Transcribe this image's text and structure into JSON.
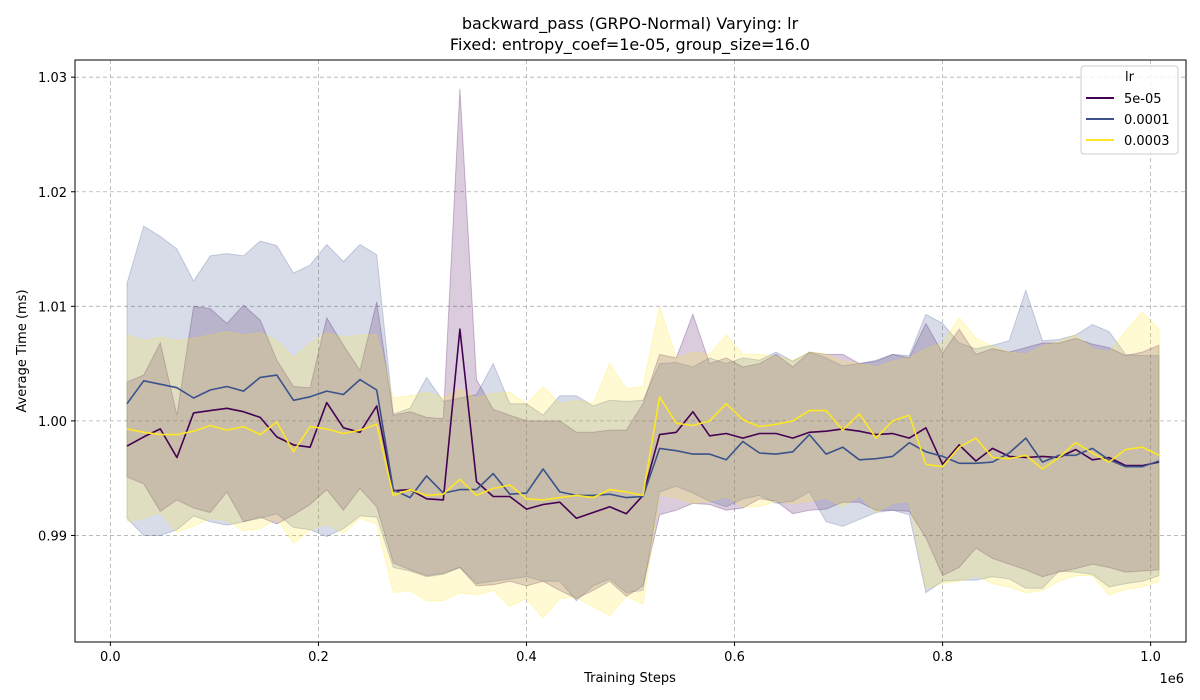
{
  "chart_data": {
    "type": "line",
    "title": "backward_pass (GRPO-Normal) Varying: lr",
    "subtitle": "Fixed: entropy_coef=1e-05, group_size=16.0",
    "xlabel": "Training Steps",
    "ylabel": "Average Time (ms)",
    "x_offset_label": "1e6",
    "xlim": [
      -0.034,
      1.034
    ],
    "ylim": [
      0.9807,
      1.0315
    ],
    "xticks": [
      0.0,
      0.2,
      0.4,
      0.6,
      0.8,
      1.0
    ],
    "xtick_labels": [
      "0.0",
      "0.2",
      "0.4",
      "0.6",
      "0.8",
      "1.0"
    ],
    "yticks": [
      0.99,
      1.0,
      1.01,
      1.02,
      1.03
    ],
    "ytick_labels": [
      "0.99",
      "1.00",
      "1.01",
      "1.02",
      "1.03"
    ],
    "grid": true,
    "legend_title": "lr",
    "legend_position": "top-right",
    "x": [
      0.016,
      0.032,
      0.048,
      0.064,
      0.08,
      0.096,
      0.112,
      0.128,
      0.144,
      0.16,
      0.176,
      0.192,
      0.208,
      0.224,
      0.24,
      0.256,
      0.272,
      0.288,
      0.304,
      0.32,
      0.336,
      0.352,
      0.368,
      0.384,
      0.4,
      0.416,
      0.432,
      0.448,
      0.464,
      0.48,
      0.496,
      0.512,
      0.528,
      0.544,
      0.56,
      0.576,
      0.592,
      0.608,
      0.624,
      0.64,
      0.656,
      0.672,
      0.688,
      0.704,
      0.72,
      0.736,
      0.752,
      0.768,
      0.784,
      0.8,
      0.816,
      0.832,
      0.848,
      0.864,
      0.88,
      0.896,
      0.912,
      0.928,
      0.944,
      0.96,
      0.976,
      0.992,
      1.008
    ],
    "series": [
      {
        "name": "5e-05",
        "color": "#440154",
        "band_opacity": 0.2,
        "values": [
          0.9978,
          0.9986,
          0.9993,
          0.9968,
          1.0007,
          1.0009,
          1.0011,
          1.0008,
          1.0003,
          0.9986,
          0.9979,
          0.9977,
          1.0016,
          0.9994,
          0.999,
          1.0013,
          0.9939,
          0.994,
          0.9932,
          0.9931,
          1.008,
          0.9947,
          0.9934,
          0.9934,
          0.9923,
          0.9927,
          0.9929,
          0.9915,
          0.992,
          0.9925,
          0.9919,
          0.9935,
          0.9988,
          0.999,
          1.0008,
          0.9987,
          0.9989,
          0.9985,
          0.9989,
          0.9989,
          0.9985,
          0.999,
          0.9991,
          0.9993,
          0.9991,
          0.9988,
          0.9989,
          0.9985,
          0.9994,
          0.9962,
          0.9979,
          0.9965,
          0.9976,
          0.9969,
          0.9968,
          0.9969,
          0.9968,
          0.9975,
          0.9966,
          0.9968,
          0.9961,
          0.9961,
          0.9964
        ],
        "lower": [
          0.9951,
          0.9945,
          0.9921,
          0.9931,
          0.9924,
          0.992,
          0.9938,
          0.9912,
          0.9916,
          0.991,
          0.9918,
          0.9927,
          0.994,
          0.9922,
          0.9941,
          0.9925,
          0.9876,
          0.987,
          0.9865,
          0.9867,
          0.9872,
          0.9856,
          0.9857,
          0.986,
          0.9856,
          0.986,
          0.9852,
          0.9845,
          0.9852,
          0.986,
          0.9847,
          0.9856,
          0.9918,
          0.9922,
          0.9928,
          0.9927,
          0.9922,
          0.9924,
          0.9932,
          0.993,
          0.9919,
          0.9922,
          0.9923,
          0.9929,
          0.9929,
          0.9922,
          0.9922,
          0.9921,
          0.9898,
          0.9865,
          0.9872,
          0.9889,
          0.988,
          0.9875,
          0.987,
          0.9864,
          0.9868,
          0.9871,
          0.9875,
          0.9872,
          0.9868,
          0.9869,
          0.987
        ],
        "upper": [
          1.0034,
          1.004,
          1.0068,
          1.0005,
          1.01,
          1.0098,
          1.0085,
          1.0101,
          1.0088,
          1.0053,
          1.003,
          1.0029,
          1.009,
          1.0066,
          1.0044,
          1.0104,
          1.0005,
          1.0008,
          1.0003,
          1.0002,
          1.029,
          1.0036,
          1.001,
          1.0005,
          1.0,
          1.0,
          1.0,
          0.999,
          0.999,
          0.9992,
          0.9992,
          1.0015,
          1.0058,
          1.0055,
          1.0093,
          1.005,
          1.0055,
          1.0047,
          1.005,
          1.0058,
          1.0047,
          1.006,
          1.0058,
          1.0058,
          1.005,
          1.0052,
          1.0058,
          1.0055,
          1.0085,
          1.0059,
          1.008,
          1.0058,
          1.0063,
          1.006,
          1.0064,
          1.0068,
          1.0068,
          1.0072,
          1.0067,
          1.0064,
          1.0057,
          1.006,
          1.0066
        ]
      },
      {
        "name": "0.0001",
        "color": "#3b528b",
        "band_opacity": 0.2,
        "values": [
          1.0015,
          1.0035,
          1.0032,
          1.0029,
          1.002,
          1.0027,
          1.003,
          1.0026,
          1.0038,
          1.004,
          1.0018,
          1.0021,
          1.0026,
          1.0023,
          1.0036,
          1.0027,
          0.994,
          0.9933,
          0.9952,
          0.9937,
          0.994,
          0.994,
          0.9954,
          0.9936,
          0.9937,
          0.9958,
          0.9938,
          0.9935,
          0.9935,
          0.9936,
          0.9933,
          0.9934,
          0.9976,
          0.9974,
          0.9971,
          0.9971,
          0.9966,
          0.9982,
          0.9972,
          0.9971,
          0.9973,
          0.9988,
          0.9971,
          0.9977,
          0.9966,
          0.9967,
          0.9969,
          0.9981,
          0.9973,
          0.9969,
          0.9963,
          0.9963,
          0.9964,
          0.9972,
          0.9985,
          0.9964,
          0.997,
          0.997,
          0.9976,
          0.9966,
          0.996,
          0.996,
          0.9965
        ],
        "lower": [
          0.9915,
          0.99,
          0.99,
          0.9905,
          0.9917,
          0.9912,
          0.9909,
          0.9912,
          0.9915,
          0.9919,
          0.9907,
          0.9905,
          0.9899,
          0.9906,
          0.9917,
          0.9916,
          0.9872,
          0.9869,
          0.9864,
          0.9866,
          0.9872,
          0.9858,
          0.986,
          0.9862,
          0.9864,
          0.986,
          0.986,
          0.9843,
          0.9856,
          0.9862,
          0.985,
          0.9852,
          0.9938,
          0.9943,
          0.9937,
          0.993,
          0.9925,
          0.9932,
          0.9935,
          0.9928,
          0.993,
          0.9938,
          0.9912,
          0.9908,
          0.9914,
          0.992,
          0.9922,
          0.9918,
          0.985,
          0.986,
          0.9861,
          0.9861,
          0.9864,
          0.9862,
          0.9854,
          0.9854,
          0.9869,
          0.9868,
          0.9866,
          0.9855,
          0.9858,
          0.986,
          0.9865
        ],
        "upper": [
          1.012,
          1.017,
          1.0161,
          1.015,
          1.0122,
          1.0144,
          1.0146,
          1.0144,
          1.0157,
          1.0153,
          1.0129,
          1.0136,
          1.0154,
          1.0139,
          1.0154,
          1.0145,
          1.0006,
          1.0011,
          1.0038,
          1.0017,
          1.002,
          1.0023,
          1.005,
          1.0015,
          1.0015,
          1.0005,
          1.0022,
          1.0022,
          1.0013,
          1.0018,
          1.0017,
          1.0018,
          1.005,
          1.0051,
          1.0047,
          1.0055,
          1.005,
          1.0055,
          1.0053,
          1.006,
          1.0052,
          1.006,
          1.0055,
          1.0048,
          1.005,
          1.0053,
          1.0058,
          1.0057,
          1.0093,
          1.0085,
          1.0068,
          1.0063,
          1.0066,
          1.007,
          1.0114,
          1.007,
          1.0071,
          1.0075,
          1.0084,
          1.0078,
          1.0058,
          1.0057,
          1.0057
        ]
      },
      {
        "name": "0.0003",
        "color": "#fde725",
        "band_opacity": 0.2,
        "values": [
          0.9993,
          0.999,
          0.9988,
          0.9988,
          0.9991,
          0.9996,
          0.9992,
          0.9995,
          0.9988,
          0.9999,
          0.9973,
          0.9995,
          0.9993,
          0.9989,
          0.9992,
          0.9997,
          0.9935,
          0.994,
          0.9935,
          0.9936,
          0.9949,
          0.9935,
          0.9941,
          0.9944,
          0.9932,
          0.9931,
          0.9933,
          0.9935,
          0.9933,
          0.994,
          0.9938,
          0.9935,
          1.0021,
          0.9998,
          0.9996,
          1.0,
          1.0015,
          1.0001,
          0.9995,
          0.9997,
          1.0,
          1.0009,
          1.0009,
          0.9992,
          1.0006,
          0.9985,
          1.0,
          1.0005,
          0.9962,
          0.996,
          0.9977,
          0.9985,
          0.9968,
          0.9967,
          0.997,
          0.9958,
          0.9968,
          0.9981,
          0.9972,
          0.9964,
          0.9975,
          0.9977,
          0.997
        ],
        "lower": [
          0.9912,
          0.9915,
          0.992,
          0.9903,
          0.9908,
          0.9915,
          0.9913,
          0.9904,
          0.9906,
          0.9915,
          0.9893,
          0.9905,
          0.991,
          0.9902,
          0.9915,
          0.991,
          0.985,
          0.9852,
          0.9843,
          0.9843,
          0.985,
          0.9848,
          0.9852,
          0.9838,
          0.9845,
          0.9828,
          0.9845,
          0.9846,
          0.9838,
          0.983,
          0.9847,
          0.984,
          0.9935,
          0.9933,
          0.9928,
          0.993,
          0.9934,
          0.9925,
          0.9925,
          0.993,
          0.9928,
          0.993,
          0.9933,
          0.9925,
          0.9935,
          0.992,
          0.9928,
          0.993,
          0.9854,
          0.9858,
          0.986,
          0.9865,
          0.9858,
          0.9855,
          0.985,
          0.9852,
          0.986,
          0.9865,
          0.9865,
          0.9848,
          0.9853,
          0.9855,
          0.986
        ],
        "upper": [
          1.0075,
          1.007,
          1.0073,
          1.007,
          1.0072,
          1.0075,
          1.0078,
          1.0075,
          1.0077,
          1.007,
          1.0055,
          1.0068,
          1.0077,
          1.0073,
          1.0075,
          1.0075,
          1.002,
          1.0022,
          1.0025,
          1.002,
          1.0028,
          1.002,
          1.0024,
          1.0025,
          1.0015,
          1.003,
          1.0015,
          1.0018,
          1.0015,
          1.005,
          1.0028,
          1.003,
          1.01,
          1.0055,
          1.006,
          1.0058,
          1.0075,
          1.0058,
          1.0058,
          1.0056,
          1.0053,
          1.006,
          1.0058,
          1.0052,
          1.005,
          1.0047,
          1.0052,
          1.0055,
          1.0063,
          1.0068,
          1.009,
          1.0072,
          1.0065,
          1.006,
          1.0058,
          1.0065,
          1.0069,
          1.0075,
          1.0063,
          1.006,
          1.0078,
          1.0095,
          1.008
        ]
      }
    ]
  }
}
